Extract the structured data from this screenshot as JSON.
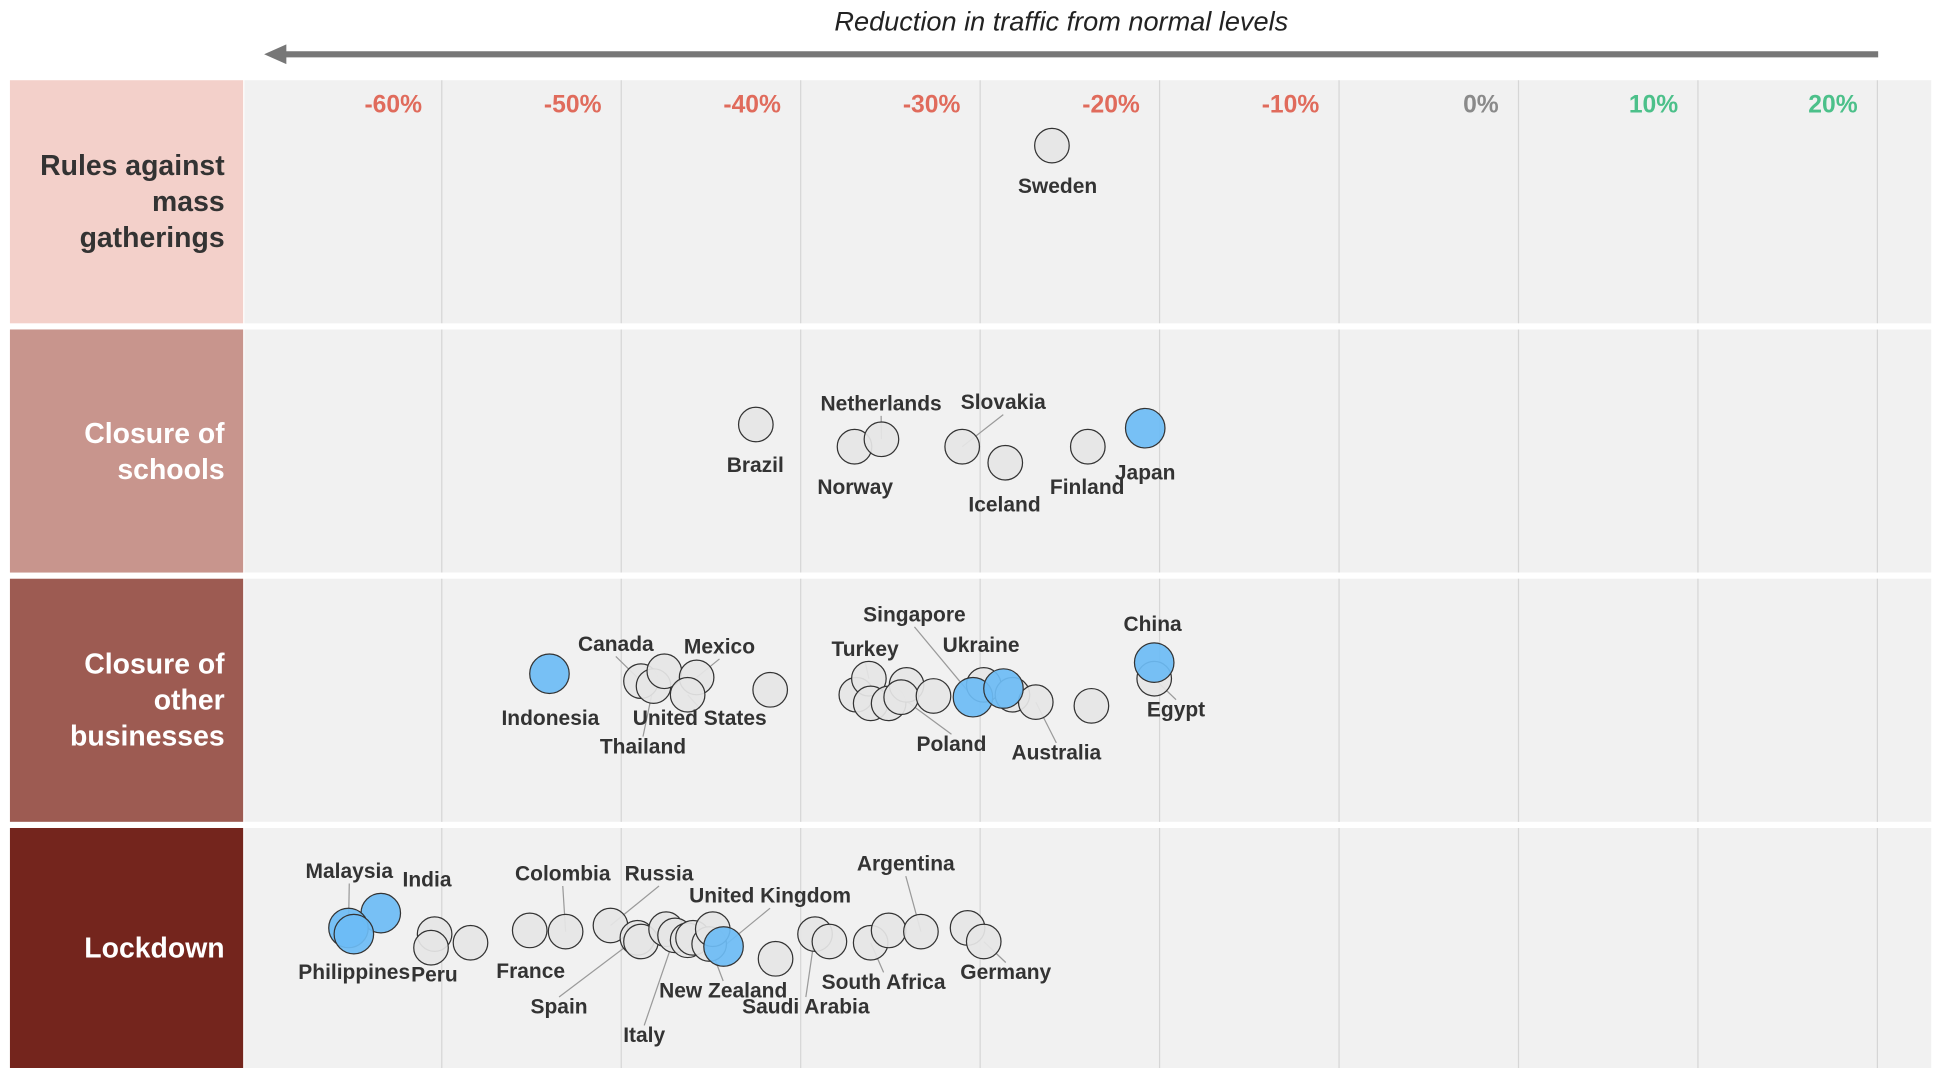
{
  "chart_data": {
    "type": "strip",
    "title": "Reduction in traffic from normal levels",
    "xlim": [
      -71,
      23
    ],
    "xticks": [
      {
        "value": -60,
        "label": "-60%"
      },
      {
        "value": -50,
        "label": "-50%"
      },
      {
        "value": -40,
        "label": "-40%"
      },
      {
        "value": -30,
        "label": "-30%"
      },
      {
        "value": -20,
        "label": "-20%"
      },
      {
        "value": -10,
        "label": "-10%"
      },
      {
        "value": 0,
        "label": "0%"
      },
      {
        "value": 10,
        "label": "10%"
      },
      {
        "value": 20,
        "label": "20%"
      }
    ],
    "xtick_colors": [
      "#e06b5c",
      "#e06b5c",
      "#e06b5c",
      "#e06b5c",
      "#e06b5c",
      "#e06b5c",
      "#8a8a8a",
      "#4cc08a",
      "#4cc08a"
    ],
    "grid": true,
    "rows": [
      {
        "label": "Rules against mass gatherings",
        "color": "#f3d0ca",
        "text_color": "#333333",
        "points": [
          {
            "name": "Sweden",
            "value": -26,
            "color": "#e6e6e6"
          }
        ]
      },
      {
        "label": "Closure of schools",
        "color": "#c8958d",
        "text_color": "#ffffff",
        "points": [
          {
            "name": "Brazil",
            "value": -42.5,
            "color": "#e6e6e6"
          },
          {
            "name": "Norway",
            "value": -37,
            "color": "#e6e6e6"
          },
          {
            "name": "Netherlands",
            "value": -35.5,
            "color": "#e6e6e6"
          },
          {
            "name": "Slovakia",
            "value": -31,
            "color": "#e6e6e6"
          },
          {
            "name": "Iceland",
            "value": -28.6,
            "color": "#e6e6e6"
          },
          {
            "name": "Finland",
            "value": -24,
            "color": "#e6e6e6"
          },
          {
            "name": "Japan",
            "value": -20.8,
            "color": "#6cbcf5"
          }
        ]
      },
      {
        "label": "Closure of other businesses",
        "color": "#9d5b52",
        "text_color": "#ffffff",
        "points": [
          {
            "name": "Indonesia",
            "value": -54,
            "color": "#6cbcf5"
          },
          {
            "name": "Canada",
            "value": -48.9,
            "color": "#e6e6e6"
          },
          {
            "name": "Thailand",
            "value": -48.2,
            "color": "#e6e6e6"
          },
          {
            "name": null,
            "value": -47.6,
            "color": "#e6e6e6"
          },
          {
            "name": "Mexico",
            "value": -45.8,
            "color": "#e6e6e6"
          },
          {
            "name": "United States",
            "value": -46.3,
            "color": "#e6e6e6"
          },
          {
            "name": null,
            "value": -41.7,
            "color": "#e6e6e6"
          },
          {
            "name": null,
            "value": -36.9,
            "color": "#e6e6e6"
          },
          {
            "name": "Turkey",
            "value": -36.2,
            "color": "#e6e6e6"
          },
          {
            "name": null,
            "value": -36.1,
            "color": "#e6e6e6"
          },
          {
            "name": null,
            "value": -35.1,
            "color": "#e6e6e6"
          },
          {
            "name": null,
            "value": -34.1,
            "color": "#e6e6e6"
          },
          {
            "name": "Poland",
            "value": -34.4,
            "color": "#e6e6e6"
          },
          {
            "name": null,
            "value": -32.6,
            "color": "#e6e6e6"
          },
          {
            "name": null,
            "value": -29.8,
            "color": "#e6e6e6"
          },
          {
            "name": null,
            "value": -28.2,
            "color": "#e6e6e6"
          },
          {
            "name": "Australia",
            "value": -26.9,
            "color": "#e6e6e6"
          },
          {
            "name": null,
            "value": -23.8,
            "color": "#e6e6e6"
          },
          {
            "name": "Singapore",
            "value": -30.4,
            "color": "#6cbcf5"
          },
          {
            "name": "Ukraine",
            "value": -28.7,
            "color": "#6cbcf5"
          },
          {
            "name": "Egypt",
            "value": -20.3,
            "color": "#e6e6e6"
          },
          {
            "name": "China",
            "value": -20.3,
            "color": "#6cbcf5"
          }
        ]
      },
      {
        "label": "Lockdown",
        "color": "#74251d",
        "text_color": "#ffffff",
        "points": [
          {
            "name": null,
            "value": -60.4,
            "color": "#e6e6e6"
          },
          {
            "name": "Peru",
            "value": -60.6,
            "color": "#e6e6e6"
          },
          {
            "name": null,
            "value": -58.4,
            "color": "#e6e6e6"
          },
          {
            "name": "France",
            "value": -55.1,
            "color": "#e6e6e6"
          },
          {
            "name": "Colombia",
            "value": -53.1,
            "color": "#e6e6e6"
          },
          {
            "name": "Russia",
            "value": -50.6,
            "color": "#e6e6e6"
          },
          {
            "name": "Spain",
            "value": -49.1,
            "color": "#e6e6e6"
          },
          {
            "name": null,
            "value": -48.9,
            "color": "#e6e6e6"
          },
          {
            "name": null,
            "value": -47.5,
            "color": "#e6e6e6"
          },
          {
            "name": "Italy",
            "value": -47.0,
            "color": "#e6e6e6"
          },
          {
            "name": null,
            "value": -46.3,
            "color": "#e6e6e6"
          },
          {
            "name": null,
            "value": -46.0,
            "color": "#e6e6e6"
          },
          {
            "name": "New Zealand",
            "value": -45.1,
            "color": "#e6e6e6"
          },
          {
            "name": null,
            "value": -44.9,
            "color": "#e6e6e6"
          },
          {
            "name": null,
            "value": -41.4,
            "color": "#e6e6e6"
          },
          {
            "name": "Saudi Arabia",
            "value": -39.2,
            "color": "#e6e6e6"
          },
          {
            "name": null,
            "value": -38.4,
            "color": "#e6e6e6"
          },
          {
            "name": "South Africa",
            "value": -36.1,
            "color": "#e6e6e6"
          },
          {
            "name": null,
            "value": -35.1,
            "color": "#e6e6e6"
          },
          {
            "name": "Argentina",
            "value": -33.3,
            "color": "#e6e6e6"
          },
          {
            "name": null,
            "value": -30.7,
            "color": "#e6e6e6"
          },
          {
            "name": "Germany",
            "value": -29.8,
            "color": "#e6e6e6"
          },
          {
            "name": "United Kingdom",
            "value": -44.3,
            "color": "#6cbcf5"
          },
          {
            "name": "India",
            "value": -63.4,
            "color": "#6cbcf5"
          },
          {
            "name": "Malaysia",
            "value": -65.2,
            "color": "#6cbcf5"
          },
          {
            "name": "Philippines",
            "value": -64.9,
            "color": "#6cbcf5"
          }
        ]
      }
    ]
  }
}
